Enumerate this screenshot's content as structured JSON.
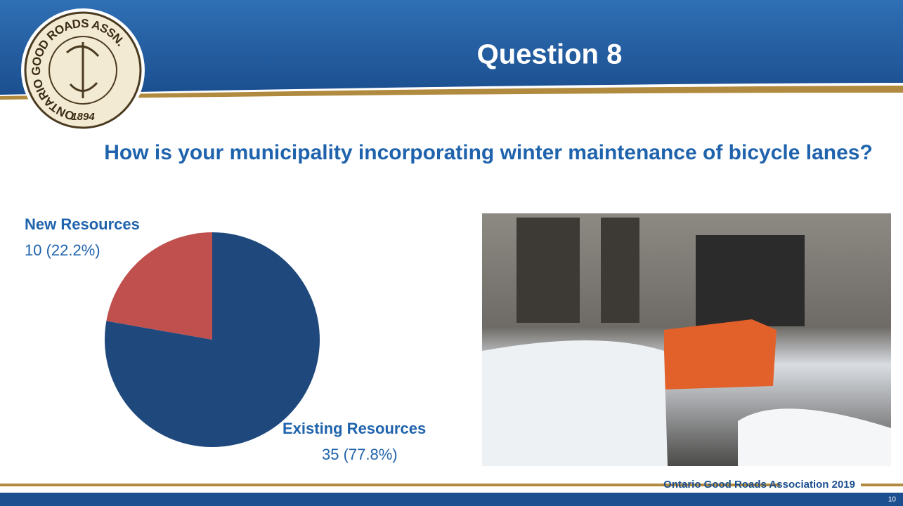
{
  "slide": {
    "title": "Question 8",
    "footer": "Ontario Good Roads Association 2019",
    "page": "10"
  },
  "logo": {
    "ring": "ONTARIO GOOD ROADS ASSN.",
    "year": "1894"
  },
  "chart_data": {
    "type": "pie",
    "title": "How is your municipality incorporating winter maintenance of bicycle lanes?",
    "categories": [
      "New Resources",
      "Existing Resources"
    ],
    "values": [
      10,
      35
    ],
    "value_labels": [
      "10 (22.2%)",
      "35 (77.8%)"
    ],
    "colors": [
      "#c0504d",
      "#1f497d"
    ]
  }
}
